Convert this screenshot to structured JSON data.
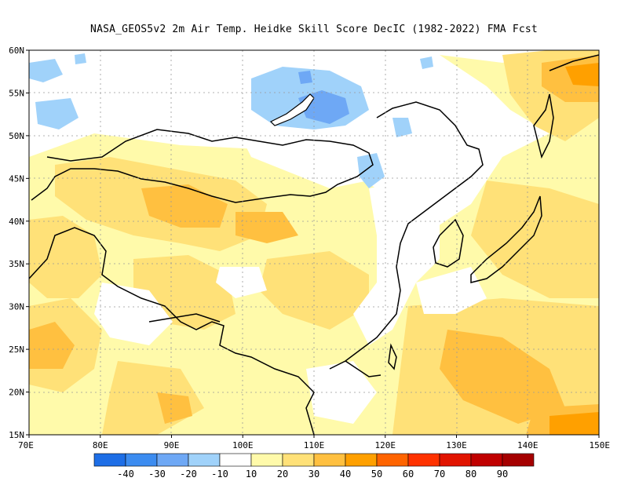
{
  "title": "NASA_GEOS5v2  2m Air Temp. Heidke Skill Score DecIC (1982-2022) FMA Fcst",
  "map": {
    "lon_range": [
      70,
      150
    ],
    "lat_range": [
      15,
      60
    ],
    "lat_ticks": [
      "15N",
      "20N",
      "25N",
      "30N",
      "35N",
      "40N",
      "45N",
      "50N",
      "55N",
      "60N"
    ],
    "lon_ticks": [
      "70E",
      "80E",
      "90E",
      "100E",
      "110E",
      "120E",
      "130E",
      "140E",
      "150E"
    ]
  },
  "colorbar": {
    "colors": [
      "#1e6ee6",
      "#3c8cf0",
      "#6ea8f5",
      "#a0d2fa",
      "#ffffff",
      "#fffaaa",
      "#ffe178",
      "#ffc040",
      "#ffa000",
      "#ff6400",
      "#ff3200",
      "#e11400",
      "#c00000",
      "#a50000"
    ],
    "labels": [
      "-40",
      "-30",
      "-20",
      "-10",
      "10",
      "20",
      "30",
      "40",
      "50",
      "60",
      "70",
      "80",
      "90"
    ]
  }
}
